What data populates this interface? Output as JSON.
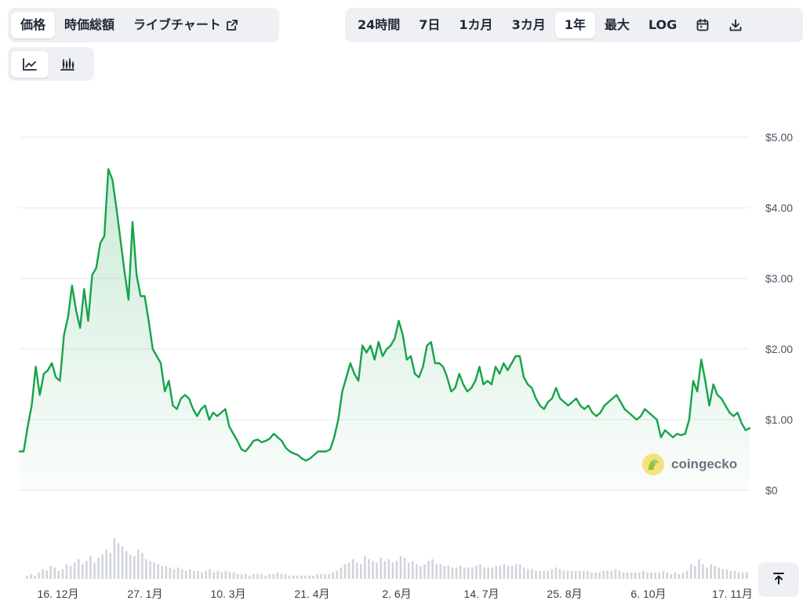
{
  "tabs": {
    "price": "価格",
    "market_cap": "時価総額",
    "live_chart": "ライブチャート"
  },
  "ranges": [
    "24時間",
    "7日",
    "1カ月",
    "3カ月",
    "1年",
    "最大",
    "LOG"
  ],
  "active_range": "1年",
  "icons": {
    "live_chart": "external-link-icon",
    "calendar": "calendar-icon",
    "download": "download-icon",
    "line_chart": "line-chart-icon",
    "candlestick": "candlestick-icon",
    "scroll_top": "arrow-up-to-top-icon"
  },
  "watermark": {
    "brand": "coingecko"
  },
  "colors": {
    "line": "#16a34a",
    "area": "#16a34a",
    "volume": "#d1d5db",
    "grid": "#e5e7eb",
    "logo": "#f6e27a"
  },
  "chart_data": {
    "type": "area",
    "title": "",
    "xlabel": "",
    "ylabel": "",
    "ylim": [
      0,
      5
    ],
    "y_ticks": [
      "$0",
      "$1.00",
      "$2.00",
      "$3.00",
      "$4.00",
      "$5.00"
    ],
    "x_ticks": [
      "16. 12月",
      "27. 1月",
      "10. 3月",
      "21. 4月",
      "2. 6月",
      "14. 7月",
      "25. 8月",
      "6. 10月",
      "17. 11月"
    ],
    "grid": true,
    "legend": "none",
    "series": [
      {
        "values": [
          0.55,
          0.55,
          0.9,
          1.2,
          1.75,
          1.35,
          1.65,
          1.7,
          1.8,
          1.6,
          1.55,
          2.2,
          2.45,
          2.9,
          2.55,
          2.3,
          2.85,
          2.4,
          3.05,
          3.15,
          3.5,
          3.6,
          4.55,
          4.4,
          4.0,
          3.55,
          3.1,
          2.7,
          3.8,
          3.05,
          2.75,
          2.75,
          2.4,
          2.0,
          1.9,
          1.8,
          1.4,
          1.55,
          1.2,
          1.15,
          1.3,
          1.35,
          1.3,
          1.15,
          1.05,
          1.15,
          1.2,
          1.0,
          1.1,
          1.05,
          1.1,
          1.15,
          0.9,
          0.8,
          0.7,
          0.58,
          0.55,
          0.62,
          0.7,
          0.72,
          0.68,
          0.7,
          0.73,
          0.8,
          0.75,
          0.7,
          0.6,
          0.55,
          0.52,
          0.5,
          0.45,
          0.42,
          0.45,
          0.5,
          0.55,
          0.55,
          0.55,
          0.58,
          0.75,
          1.0,
          1.4,
          1.6,
          1.8,
          1.65,
          1.55,
          2.05,
          1.95,
          2.05,
          1.85,
          2.1,
          1.9,
          2.0,
          2.05,
          2.15,
          2.4,
          2.2,
          1.85,
          1.9,
          1.65,
          1.6,
          1.75,
          2.05,
          2.1,
          1.8,
          1.8,
          1.75,
          1.6,
          1.4,
          1.45,
          1.65,
          1.5,
          1.4,
          1.45,
          1.55,
          1.75,
          1.5,
          1.55,
          1.5,
          1.75,
          1.65,
          1.8,
          1.7,
          1.8,
          1.9,
          1.9,
          1.6,
          1.5,
          1.45,
          1.3,
          1.2,
          1.15,
          1.25,
          1.3,
          1.45,
          1.3,
          1.25,
          1.2,
          1.25,
          1.3,
          1.2,
          1.15,
          1.2,
          1.1,
          1.05,
          1.1,
          1.2,
          1.25,
          1.3,
          1.35,
          1.25,
          1.15,
          1.1,
          1.05,
          1.0,
          1.05,
          1.15,
          1.1,
          1.05,
          1.0,
          0.75,
          0.85,
          0.8,
          0.75,
          0.8,
          0.78,
          0.8,
          1.0,
          1.55,
          1.4,
          1.85,
          1.55,
          1.2,
          1.5,
          1.35,
          1.3,
          1.2,
          1.1,
          1.05,
          1.1,
          0.95,
          0.85,
          0.88
        ]
      }
    ],
    "volume": [
      2,
      3,
      2,
      4,
      6,
      5,
      8,
      7,
      5,
      6,
      9,
      8,
      10,
      12,
      9,
      11,
      14,
      10,
      13,
      15,
      18,
      16,
      25,
      22,
      20,
      17,
      15,
      14,
      18,
      16,
      12,
      11,
      10,
      9,
      8,
      8,
      7,
      6,
      7,
      6,
      5,
      6,
      5,
      5,
      4,
      5,
      6,
      4,
      5,
      4,
      5,
      4,
      4,
      3,
      3,
      3,
      2,
      3,
      3,
      3,
      2,
      3,
      3,
      4,
      3,
      3,
      2,
      2,
      2,
      2,
      2,
      2,
      2,
      3,
      3,
      3,
      3,
      4,
      5,
      7,
      9,
      10,
      12,
      10,
      9,
      14,
      12,
      11,
      10,
      13,
      11,
      12,
      10,
      11,
      14,
      13,
      10,
      11,
      9,
      8,
      9,
      11,
      12,
      9,
      9,
      8,
      8,
      7,
      7,
      8,
      7,
      7,
      7,
      8,
      9,
      7,
      7,
      7,
      8,
      8,
      9,
      8,
      8,
      9,
      9,
      7,
      6,
      6,
      5,
      5,
      5,
      5,
      6,
      7,
      6,
      5,
      5,
      5,
      5,
      5,
      5,
      5,
      4,
      4,
      4,
      5,
      5,
      5,
      6,
      5,
      4,
      4,
      4,
      4,
      4,
      5,
      4,
      4,
      4,
      4,
      5,
      4,
      3,
      4,
      3,
      4,
      5,
      9,
      8,
      12,
      9,
      7,
      9,
      8,
      7,
      6,
      6,
      5,
      5,
      4,
      4,
      4
    ]
  }
}
